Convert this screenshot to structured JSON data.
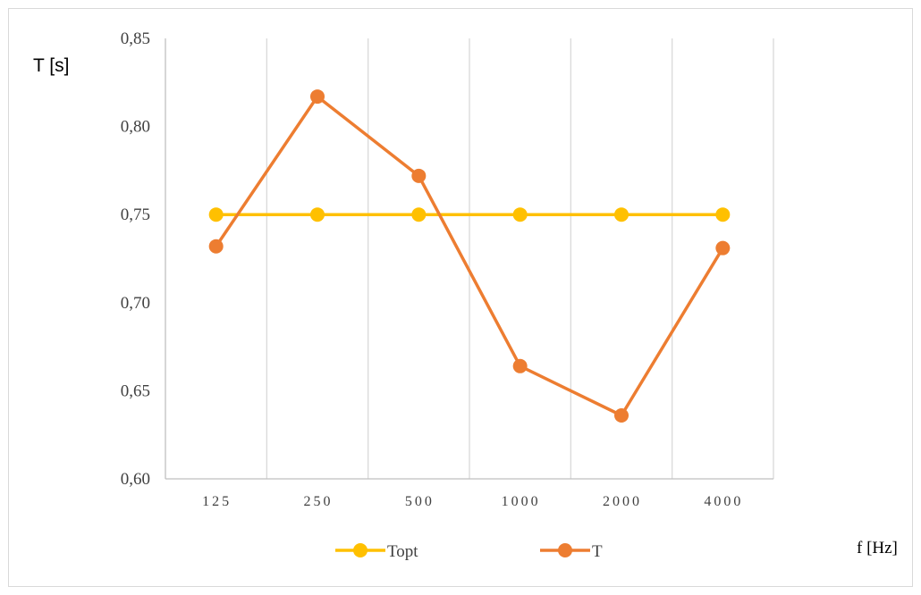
{
  "chart_data": {
    "type": "line",
    "title": "",
    "xlabel": "f [Hz]",
    "ylabel": "T [s]",
    "categories": [
      "125",
      "250",
      "500",
      "1000",
      "2000",
      "4000"
    ],
    "ylim": [
      0.6,
      0.85
    ],
    "yticks": [
      "0,60",
      "0,65",
      "0,70",
      "0,75",
      "0,80",
      "0,85"
    ],
    "ytick_values": [
      0.6,
      0.65,
      0.7,
      0.75,
      0.8,
      0.85
    ],
    "grid": "vertical",
    "legend": "bottom",
    "series": [
      {
        "name": "Topt",
        "color": "#ffc000",
        "values": [
          0.75,
          0.75,
          0.75,
          0.75,
          0.75,
          0.75
        ]
      },
      {
        "name": "T",
        "color": "#ed7d31",
        "values": [
          0.732,
          0.817,
          0.772,
          0.664,
          0.636,
          0.731
        ]
      }
    ]
  }
}
